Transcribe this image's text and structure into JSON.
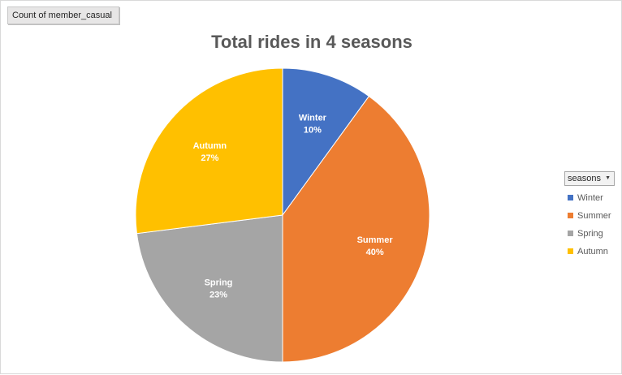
{
  "field_button": {
    "label": "Count of member_casual"
  },
  "legend": {
    "title": "seasons",
    "dropdown_icon": "dropdown-arrow-icon"
  },
  "chart_data": {
    "type": "pie",
    "title": "Total rides in 4 seasons",
    "categories": [
      "Winter",
      "Summer",
      "Spring",
      "Autumn"
    ],
    "values": [
      10,
      40,
      23,
      27
    ],
    "labels": [
      "10%",
      "40%",
      "23%",
      "27%"
    ],
    "colors": [
      "#4472c4",
      "#ed7d31",
      "#a5a5a5",
      "#ffc000"
    ],
    "start_angle_deg": 0,
    "direction": "clockwise",
    "legend_position": "right",
    "data_labels": "category and percentage, inside slices"
  }
}
